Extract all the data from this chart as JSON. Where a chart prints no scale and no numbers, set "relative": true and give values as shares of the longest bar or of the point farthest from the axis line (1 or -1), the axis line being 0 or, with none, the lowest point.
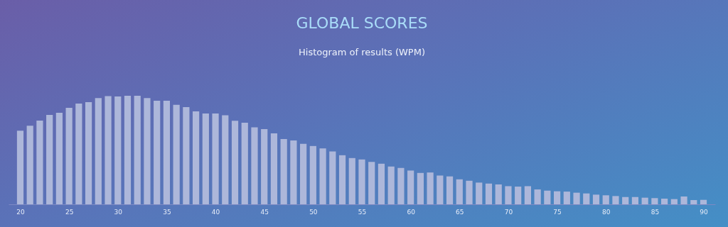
{
  "chart_data": {
    "type": "bar",
    "title": "GLOBAL SCORES",
    "subtitle": "Histogram of results (WPM)",
    "relative": true,
    "color": "#adb7da",
    "x": [
      20,
      21,
      22,
      23,
      24,
      25,
      26,
      27,
      28,
      29,
      30,
      31,
      32,
      33,
      34,
      35,
      36,
      37,
      38,
      39,
      40,
      41,
      42,
      43,
      44,
      45,
      46,
      47,
      48,
      49,
      50,
      51,
      52,
      53,
      54,
      55,
      56,
      57,
      58,
      59,
      60,
      61,
      62,
      63,
      64,
      65,
      66,
      67,
      68,
      69,
      70,
      71,
      72,
      73,
      74,
      75,
      76,
      77,
      78,
      79,
      80,
      81,
      82,
      83,
      84,
      85,
      86,
      87,
      88,
      89,
      90
    ],
    "values": [
      0.678,
      0.724,
      0.772,
      0.824,
      0.843,
      0.889,
      0.928,
      0.941,
      0.978,
      0.996,
      0.993,
      1,
      1,
      0.978,
      0.954,
      0.954,
      0.917,
      0.896,
      0.857,
      0.837,
      0.837,
      0.82,
      0.77,
      0.752,
      0.709,
      0.693,
      0.654,
      0.602,
      0.589,
      0.557,
      0.537,
      0.515,
      0.487,
      0.452,
      0.426,
      0.413,
      0.391,
      0.374,
      0.348,
      0.335,
      0.311,
      0.289,
      0.293,
      0.265,
      0.257,
      0.23,
      0.217,
      0.2,
      0.191,
      0.183,
      0.167,
      0.163,
      0.167,
      0.137,
      0.126,
      0.12,
      0.117,
      0.107,
      0.1,
      0.089,
      0.083,
      0.076,
      0.067,
      0.067,
      0.061,
      0.057,
      0.052,
      0.048,
      0.072,
      0.039,
      0.041
    ],
    "xlim": [
      18.8,
      91.2
    ],
    "xticks": [
      20,
      25,
      30,
      35,
      40,
      45,
      50,
      55,
      60,
      65,
      70,
      75,
      80,
      85,
      90
    ]
  }
}
